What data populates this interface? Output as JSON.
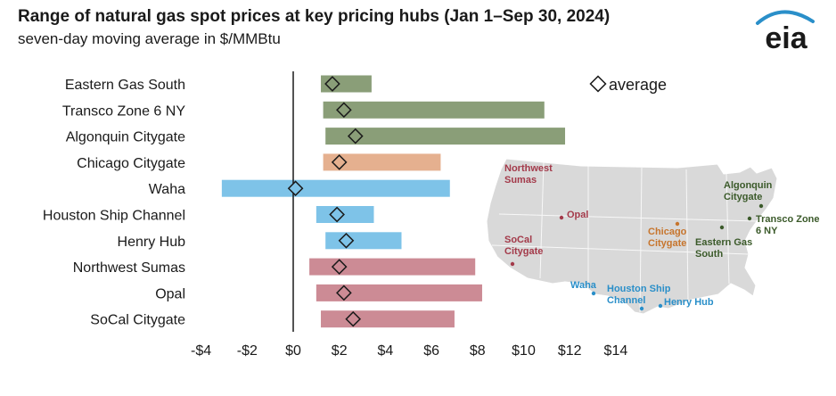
{
  "header": {
    "title": "Range of natural gas spot prices at key pricing hubs (Jan 1–Sep 30, 2024)",
    "subtitle": "seven-day moving average in $/MMBtu"
  },
  "logo": {
    "text": "eia",
    "icon": "eia-logo"
  },
  "colors": {
    "northeast": "#8a9e78",
    "midwest": "#e5b08f",
    "south": "#7ec3e8",
    "west": "#cc8b95",
    "map": "#d9d9d9"
  },
  "chart_data": {
    "type": "range-bar",
    "xlim": [
      -4,
      15
    ],
    "x_ticks": [
      -4,
      -2,
      0,
      2,
      4,
      6,
      8,
      10,
      12,
      14
    ],
    "x_tick_labels": [
      "-$4",
      "-$2",
      "$0",
      "$2",
      "$4",
      "$6",
      "$8",
      "$10",
      "$12",
      "$14"
    ],
    "legend": {
      "marker": "diamond",
      "label": "average",
      "placement": "top-right"
    },
    "hubs": [
      {
        "name": "Eastern Gas South",
        "region": "northeast",
        "min": 1.2,
        "max": 3.4,
        "avg": 1.7
      },
      {
        "name": "Transco Zone 6 NY",
        "region": "northeast",
        "min": 1.3,
        "max": 10.9,
        "avg": 2.2
      },
      {
        "name": "Algonquin Citygate",
        "region": "northeast",
        "min": 1.4,
        "max": 11.8,
        "avg": 2.7
      },
      {
        "name": "Chicago Citygate",
        "region": "midwest",
        "min": 1.3,
        "max": 6.4,
        "avg": 2.0
      },
      {
        "name": "Waha",
        "region": "south",
        "min": -3.1,
        "max": 6.8,
        "avg": 0.1
      },
      {
        "name": "Houston Ship Channel",
        "region": "south",
        "min": 1.0,
        "max": 3.5,
        "avg": 1.9
      },
      {
        "name": "Henry Hub",
        "region": "south",
        "min": 1.4,
        "max": 4.7,
        "avg": 2.3
      },
      {
        "name": "Northwest Sumas",
        "region": "west",
        "min": 0.7,
        "max": 7.9,
        "avg": 2.0
      },
      {
        "name": "Opal",
        "region": "west",
        "min": 1.0,
        "max": 8.2,
        "avg": 2.2
      },
      {
        "name": "SoCal Citygate",
        "region": "west",
        "min": 1.2,
        "max": 7.0,
        "avg": 2.6
      }
    ]
  },
  "map": {
    "labels": [
      {
        "id": "northwest-sumas",
        "lines": [
          "Northwest",
          "Sumas"
        ],
        "region": "west"
      },
      {
        "id": "opal",
        "lines": [
          "Opal"
        ],
        "region": "west"
      },
      {
        "id": "socal-citygate",
        "lines": [
          "SoCal",
          "Citygate"
        ],
        "region": "west"
      },
      {
        "id": "chicago-citygate",
        "lines": [
          "Chicago",
          "Citygate"
        ],
        "region": "midwest"
      },
      {
        "id": "algonquin-citygate",
        "lines": [
          "Algonquin",
          "Citygate"
        ],
        "region": "northeast"
      },
      {
        "id": "transco-zone-6-ny",
        "lines": [
          "Transco Zone",
          "6 NY"
        ],
        "region": "northeast"
      },
      {
        "id": "eastern-gas-south",
        "lines": [
          "Eastern Gas",
          "South"
        ],
        "region": "northeast"
      },
      {
        "id": "waha",
        "lines": [
          "Waha"
        ],
        "region": "south"
      },
      {
        "id": "houston-ship-channel",
        "lines": [
          "Houston Ship",
          "Channel"
        ],
        "region": "south"
      },
      {
        "id": "henry-hub",
        "lines": [
          "Henry Hub"
        ],
        "region": "south"
      }
    ]
  }
}
